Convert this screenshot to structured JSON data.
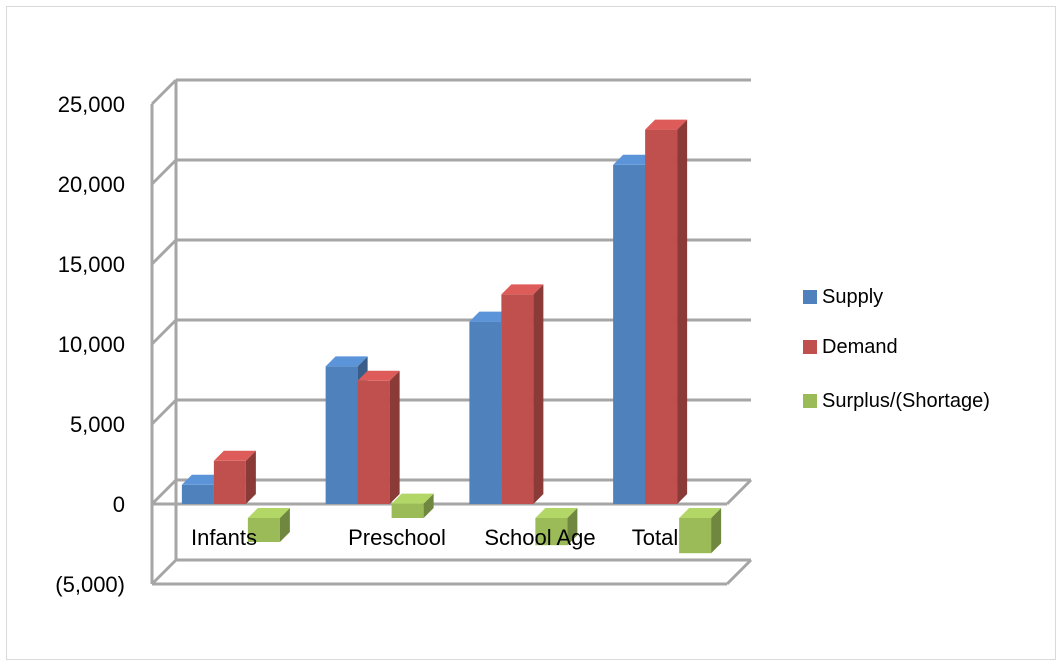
{
  "chart_data": {
    "type": "bar",
    "title": "",
    "xlabel": "",
    "ylabel": "",
    "categories": [
      "Infants",
      "Preschool",
      "School Age",
      "Total"
    ],
    "series": [
      {
        "name": "Supply",
        "color": "#4f81bd",
        "values": [
          1200,
          8600,
          11400,
          21200
        ]
      },
      {
        "name": "Demand",
        "color": "#c0504d",
        "values": [
          2700,
          7700,
          13100,
          23400
        ]
      },
      {
        "name": "Surplus/(Shortage)",
        "color": "#9bbb59",
        "values": [
          -1500,
          900,
          -1700,
          -2200
        ]
      }
    ],
    "ylim": [
      -5000,
      25000
    ],
    "yticks": [
      -5000,
      0,
      5000,
      10000,
      15000,
      20000,
      25000
    ],
    "ytick_labels": [
      "(5,000)",
      "0",
      "5,000",
      "10,000",
      "15,000",
      "20,000",
      "25,000"
    ],
    "grid": true,
    "legend": "right"
  }
}
